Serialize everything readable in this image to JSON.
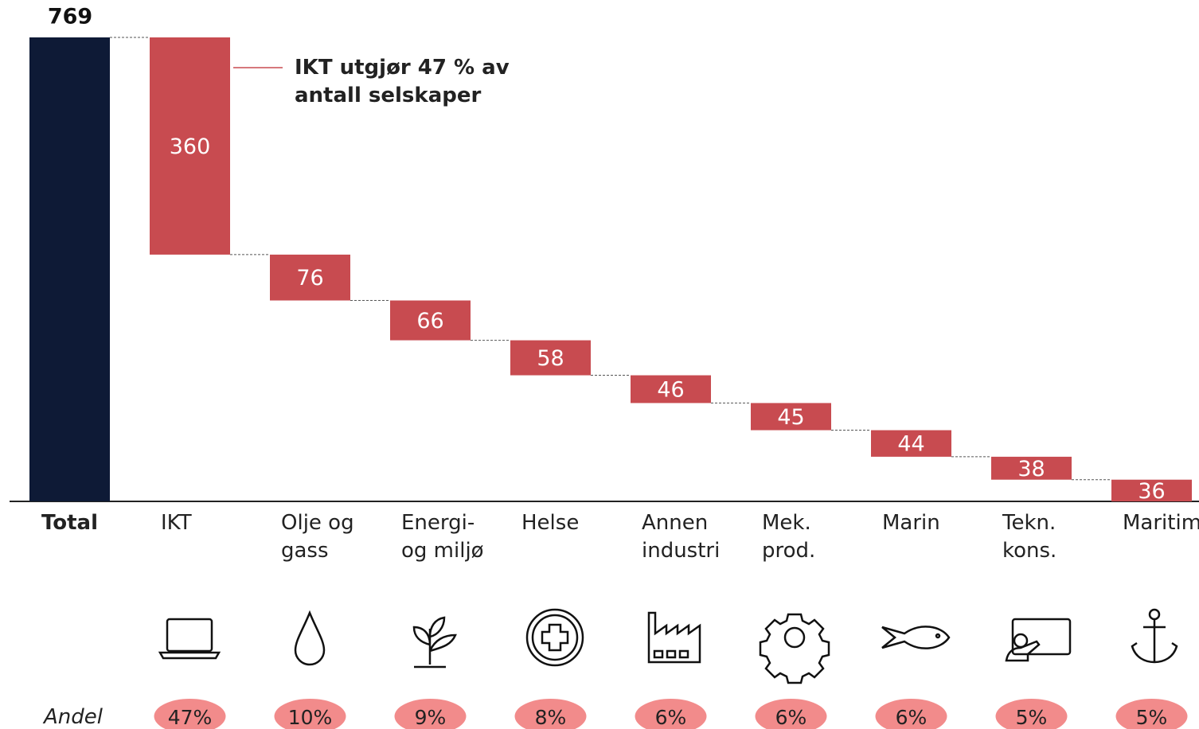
{
  "chart_data": {
    "type": "waterfall",
    "total": {
      "label": "Total",
      "value": 769,
      "color": "#0e1a36"
    },
    "categories": [
      "IKT",
      "Olje og\ngass",
      "Energi-\nog miljø",
      "Helse",
      "Annen\nindustri",
      "Mek.\nprod.",
      "Marin",
      "Tekn.\nkons.",
      "Maritim"
    ],
    "values": [
      360,
      76,
      66,
      58,
      46,
      45,
      44,
      38,
      36
    ],
    "color": "#c84b50",
    "annotation": "IKT utgjør 47 % av\nantall selskaper",
    "share_title": "Andel",
    "shares": [
      47,
      10,
      9,
      8,
      6,
      6,
      6,
      5,
      5
    ],
    "share_labels": [
      "47%",
      "10%",
      "9%",
      "8%",
      "6%",
      "6%",
      "6%",
      "5%",
      "5%"
    ],
    "share_color": "#f28b8b"
  }
}
